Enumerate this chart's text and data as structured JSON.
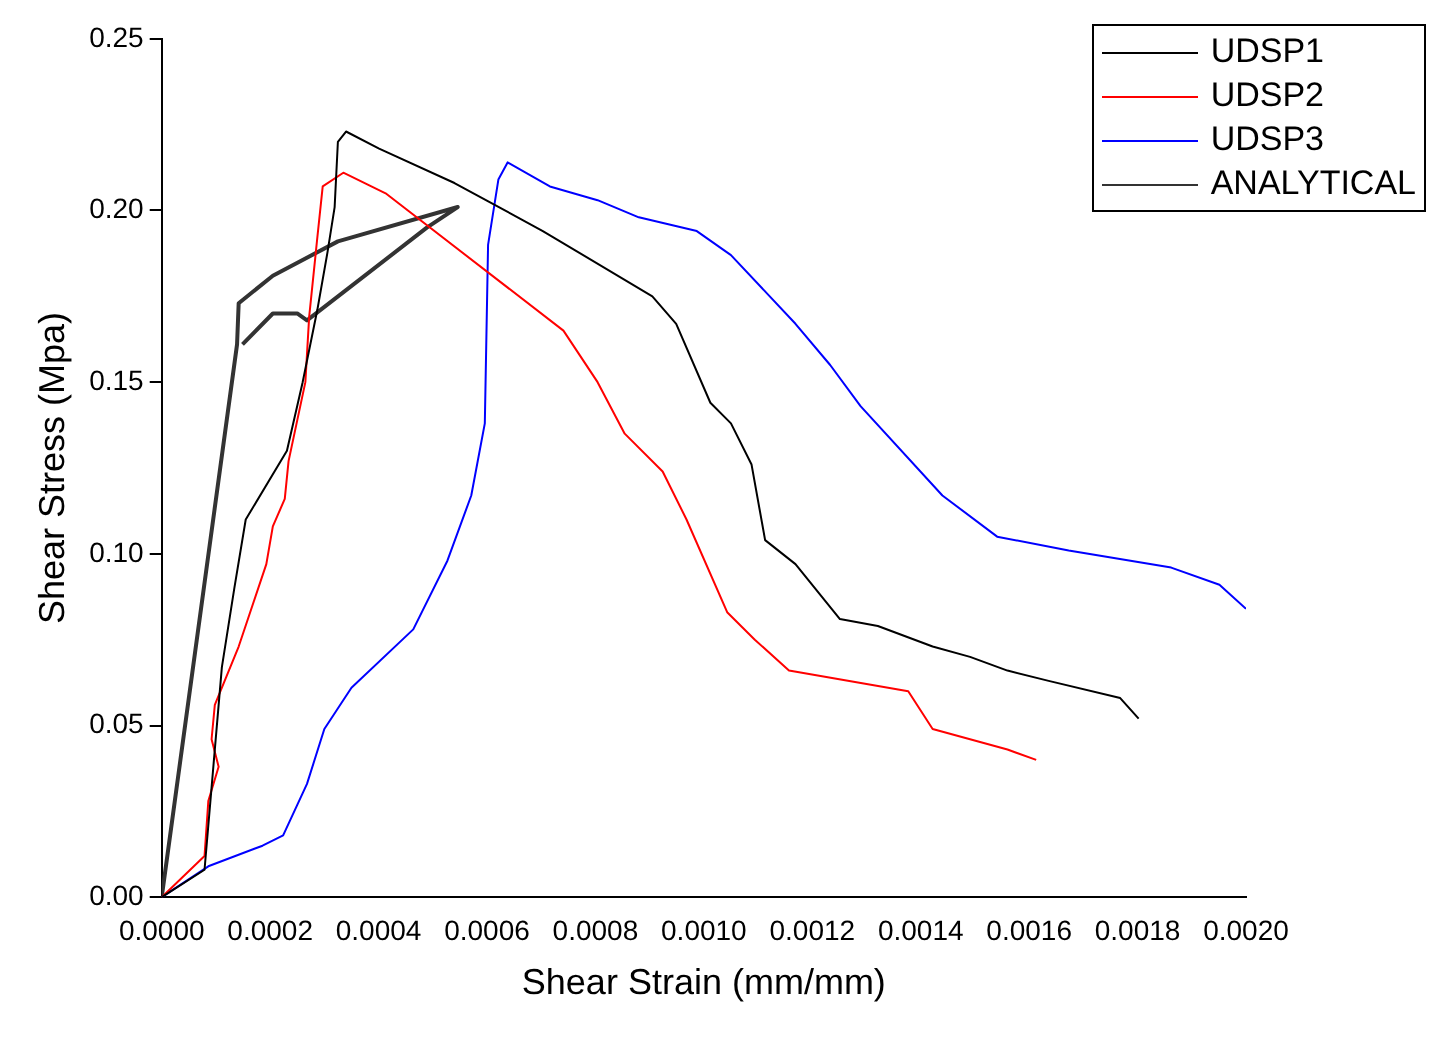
{
  "chart_data": {
    "type": "line",
    "xlabel": "Shear Strain (mm/mm)",
    "ylabel": "Shear Stress (Mpa)",
    "xlim": [
      0,
      0.002
    ],
    "xticks": [
      {
        "value": 0,
        "label": "0.0000"
      },
      {
        "value": 0.0002,
        "label": "0.0002"
      },
      {
        "value": 0.0004,
        "label": "0.0004"
      },
      {
        "value": 0.0006,
        "label": "0.0006"
      },
      {
        "value": 0.0008,
        "label": "0.0008"
      },
      {
        "value": 0.001,
        "label": "0.0010"
      },
      {
        "value": 0.0012,
        "label": "0.0012"
      },
      {
        "value": 0.0014,
        "label": "0.0014"
      },
      {
        "value": 0.0016,
        "label": "0.0016"
      },
      {
        "value": 0.0018,
        "label": "0.0018"
      },
      {
        "value": 0.002,
        "label": "0.0020"
      }
    ],
    "ylim": [
      0,
      0.25
    ],
    "yticks": [
      {
        "value": 0,
        "label": "0.00"
      },
      {
        "value": 0.05,
        "label": "0.05"
      },
      {
        "value": 0.1,
        "label": "0.10"
      },
      {
        "value": 0.15,
        "label": "0.15"
      },
      {
        "value": 0.2,
        "label": "0.20"
      },
      {
        "value": 0.25,
        "label": "0.25"
      }
    ],
    "legend": "top right",
    "grid": false,
    "marker": "none",
    "line_style": "solid",
    "series": [
      {
        "name": "UDSP1",
        "color": "#000000",
        "x": [
          0,
          7.9e-05,
          0.000111,
          0.000134,
          0.000155,
          0.000231,
          0.00026,
          0.000287,
          0.000306,
          0.000319,
          0.000325,
          0.00034,
          0.000401,
          0.00054,
          0.000703,
          0.000905,
          0.000949,
          0.001012,
          0.00105,
          0.001088,
          0.001113,
          0.001169,
          0.001251,
          0.001321,
          0.001422,
          0.001491,
          0.00156,
          0.001636,
          0.001768,
          0.001802
        ],
        "values": [
          0,
          0.008,
          0.067,
          0.09,
          0.11,
          0.13,
          0.15,
          0.171,
          0.188,
          0.201,
          0.22,
          0.223,
          0.218,
          0.208,
          0.194,
          0.175,
          0.167,
          0.144,
          0.138,
          0.126,
          0.104,
          0.097,
          0.081,
          0.079,
          0.073,
          0.07,
          0.066,
          0.063,
          0.058,
          0.052
        ]
      },
      {
        "name": "UDSP2",
        "color": "#ff0000",
        "x": [
          0,
          7.9e-05,
          8.6e-05,
          0.000105,
          9.2e-05,
          9.8e-05,
          0.000142,
          0.000193,
          0.000205,
          0.000227,
          0.000234,
          0.000265,
          0.000272,
          0.000287,
          0.000297,
          0.000335,
          0.000413,
          0.000741,
          0.000804,
          0.000854,
          0.000924,
          0.000968,
          0.001043,
          0.001094,
          0.001157,
          0.001377,
          0.001422,
          0.00156,
          0.001613
        ],
        "values": [
          0,
          0.012,
          0.028,
          0.038,
          0.046,
          0.056,
          0.073,
          0.097,
          0.108,
          0.116,
          0.127,
          0.15,
          0.169,
          0.192,
          0.207,
          0.211,
          0.205,
          0.165,
          0.15,
          0.135,
          0.124,
          0.11,
          0.083,
          0.075,
          0.066,
          0.06,
          0.049,
          0.043,
          0.04
        ]
      },
      {
        "name": "UDSP3",
        "color": "#0000ff",
        "x": [
          0,
          8.6e-05,
          0.000186,
          0.000224,
          0.000268,
          0.0003,
          0.00035,
          0.000464,
          0.000527,
          0.000571,
          0.000596,
          0.000602,
          0.000621,
          0.000638,
          0.000716,
          0.000804,
          0.00088,
          0.000987,
          0.00105,
          0.001169,
          0.001233,
          0.001289,
          0.00144,
          0.001541,
          0.001673,
          0.001862,
          0.001951,
          0.002
        ],
        "values": [
          0,
          0.009,
          0.015,
          0.018,
          0.033,
          0.049,
          0.061,
          0.078,
          0.098,
          0.117,
          0.138,
          0.19,
          0.209,
          0.214,
          0.207,
          0.203,
          0.198,
          0.194,
          0.187,
          0.167,
          0.155,
          0.143,
          0.117,
          0.105,
          0.101,
          0.096,
          0.091,
          0.084
        ]
      },
      {
        "name": "ANALYTICAL",
        "color": "#333333",
        "x": [
          0,
          0.000139,
          0.000142,
          0.000205,
          0.000325,
          0.000546,
          0.000489,
          0.000268,
          0.00025,
          0.000205,
          0.000149
        ],
        "values": [
          0,
          0.161,
          0.173,
          0.181,
          0.191,
          0.201,
          0.195,
          0.168,
          0.17,
          0.17,
          0.161
        ]
      }
    ]
  }
}
